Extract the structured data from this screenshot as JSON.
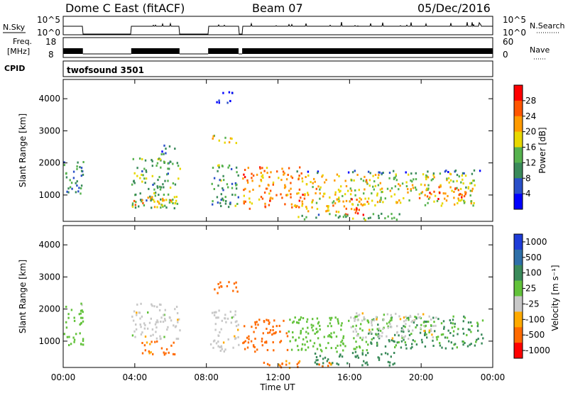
{
  "header": {
    "radar": "Dome C East (fitACF)",
    "beam": "Beam 07",
    "date": "05/Dec/2016"
  },
  "panels": {
    "nsky_label": "N.Sky",
    "nsearch_label": "N.Search",
    "nsky_ticks": [
      "10^5",
      "10^0"
    ],
    "nsearch_ticks": [
      "10^5",
      "10^0"
    ],
    "freq_label": "Freq.",
    "freq_unit": "[MHz]",
    "freq_ticks": [
      "18",
      "8"
    ],
    "nave_label": "Nave",
    "nave_ticks": [
      "60",
      "0"
    ],
    "cpid_label": "CPID",
    "cpid_value": "twofsound 3501"
  },
  "axes": {
    "ylabel": "Slant Range [km]",
    "xlabel": "Time UT",
    "y_ticks": [
      "1000",
      "2000",
      "3000",
      "4000"
    ],
    "x_ticks": [
      "00:00",
      "04:00",
      "08:00",
      "12:00",
      "16:00",
      "20:00",
      "00:00"
    ]
  },
  "colorbars": {
    "power": {
      "label": "Power [dB]",
      "ticks": [
        "4",
        "8",
        "12",
        "16",
        "20",
        "24",
        "28"
      ],
      "colors": [
        "#0000ff",
        "#2a4fc8",
        "#3a8a5a",
        "#56b24e",
        "#e8d800",
        "#ff9a00",
        "#ff5500",
        "#ff0000"
      ]
    },
    "velocity": {
      "label": "Velocity [m s⁻¹]",
      "ticks": [
        "1000",
        "500",
        "100",
        "25",
        "-25",
        "-100",
        "-500",
        "-1000"
      ],
      "colors": [
        "#1e3cd8",
        "#2e6fa8",
        "#3a8a5a",
        "#62c23a",
        "#c8c8c8",
        "#ffaa00",
        "#ff6a00",
        "#ff0000"
      ]
    }
  },
  "chart_data": [
    {
      "type": "heatmap",
      "title": "Power",
      "xlabel": "Time UT",
      "ylabel": "Slant Range [km]",
      "xlim": [
        0,
        24
      ],
      "ylim": [
        180,
        4600
      ],
      "colorbar_label": "Power [dB]",
      "colorbar_range": [
        2,
        32
      ],
      "regions": [
        {
          "t0": 0.0,
          "t1": 1.1,
          "r0": 900,
          "r1": 2100,
          "level": 11
        },
        {
          "t0": 3.8,
          "t1": 6.5,
          "r0": 600,
          "r1": 2200,
          "level": 14
        },
        {
          "t0": 3.9,
          "t1": 6.4,
          "r0": 650,
          "r1": 1000,
          "level": 22
        },
        {
          "t0": 5.2,
          "t1": 6.3,
          "r0": 2300,
          "r1": 2600,
          "level": 9
        },
        {
          "t0": 8.2,
          "t1": 9.8,
          "r0": 650,
          "r1": 2000,
          "level": 13
        },
        {
          "t0": 8.3,
          "t1": 9.7,
          "r0": 2600,
          "r1": 2900,
          "level": 18
        },
        {
          "t0": 8.5,
          "t1": 9.5,
          "r0": 3900,
          "r1": 4300,
          "level": 8
        },
        {
          "t0": 10.0,
          "t1": 13.5,
          "r0": 600,
          "r1": 1900,
          "level": 24
        },
        {
          "t0": 13.5,
          "t1": 17.0,
          "r0": 500,
          "r1": 1700,
          "level": 20
        },
        {
          "t0": 15.5,
          "t1": 16.8,
          "r0": 400,
          "r1": 900,
          "level": 27
        },
        {
          "t0": 17.0,
          "t1": 23.0,
          "r0": 700,
          "r1": 1700,
          "level": 18
        },
        {
          "t0": 19.5,
          "t1": 22.5,
          "r0": 900,
          "r1": 1300,
          "level": 25
        },
        {
          "t0": 12.0,
          "t1": 23.5,
          "r0": 1700,
          "r1": 1800,
          "level": 7
        },
        {
          "t0": 13.0,
          "t1": 19.0,
          "r0": 250,
          "r1": 450,
          "level": 14
        }
      ]
    },
    {
      "type": "heatmap",
      "title": "Velocity",
      "xlabel": "Time UT",
      "ylabel": "Slant Range [km]",
      "xlim": [
        0,
        24
      ],
      "ylim": [
        180,
        4600
      ],
      "colorbar_label": "Velocity [m s⁻¹]",
      "colorbar_range": [
        -1000,
        1000
      ],
      "regions": [
        {
          "t0": 0.0,
          "t1": 1.1,
          "r0": 900,
          "r1": 2200,
          "value": 50
        },
        {
          "t0": 3.8,
          "t1": 6.5,
          "r0": 1100,
          "r1": 2200,
          "value": 0
        },
        {
          "t0": 4.3,
          "t1": 6.3,
          "r0": 600,
          "r1": 1050,
          "value": -150
        },
        {
          "t0": 8.2,
          "t1": 9.8,
          "r0": 650,
          "r1": 2000,
          "value": 0
        },
        {
          "t0": 8.3,
          "t1": 9.7,
          "r0": 2500,
          "r1": 2900,
          "value": -300
        },
        {
          "t0": 10.0,
          "t1": 12.5,
          "r0": 700,
          "r1": 1700,
          "value": -250
        },
        {
          "t0": 12.5,
          "t1": 17.0,
          "r0": 700,
          "r1": 1800,
          "value": 60
        },
        {
          "t0": 14.0,
          "t1": 18.5,
          "r0": 250,
          "r1": 700,
          "value": 200
        },
        {
          "t0": 17.0,
          "t1": 23.5,
          "r0": 800,
          "r1": 1800,
          "value": 120
        },
        {
          "t0": 16.0,
          "t1": 21.0,
          "r0": 1100,
          "r1": 1900,
          "value": 0
        },
        {
          "t0": 11.0,
          "t1": 15.0,
          "r0": 200,
          "r1": 420,
          "value": -120
        }
      ]
    }
  ]
}
